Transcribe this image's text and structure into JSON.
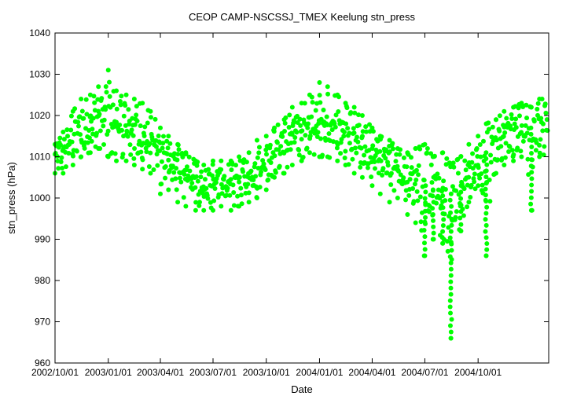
{
  "chart_data": {
    "type": "scatter",
    "title": "CEOP CAMP-NSCSSJ_TMEX Keelung  stn_press",
    "xlabel": "Date",
    "ylabel": "stn_press (hPa)",
    "ylim": [
      960,
      1040
    ],
    "yticks": [
      960,
      970,
      980,
      990,
      1000,
      1010,
      1020,
      1030,
      1040
    ],
    "xlim": [
      "2002/10/01",
      "2005/01/31"
    ],
    "xticks": [
      "2002/10/01",
      "2003/01/01",
      "2003/04/01",
      "2003/07/01",
      "2003/10/01",
      "2004/01/01",
      "2004/04/01",
      "2004/07/01",
      "2004/10/01"
    ],
    "grid": false,
    "color": "#00ff00",
    "series": [
      {
        "x": [
          "2002/10/01",
          "2002/10/15",
          "2002/11/01",
          "2002/11/15",
          "2002/12/01",
          "2002/12/15",
          "2003/01/01",
          "2003/01/15",
          "2003/02/01",
          "2003/02/15",
          "2003/03/01",
          "2003/03/15",
          "2003/04/01",
          "2003/04/15",
          "2003/05/01",
          "2003/05/15",
          "2003/06/01",
          "2003/06/15",
          "2003/07/01",
          "2003/07/15",
          "2003/08/01",
          "2003/08/15",
          "2003/09/01",
          "2003/09/15",
          "2003/10/01",
          "2003/10/15",
          "2003/11/01",
          "2003/11/15",
          "2003/12/01",
          "2003/12/15",
          "2004/01/01",
          "2004/01/15",
          "2004/02/01",
          "2004/02/15",
          "2004/03/01",
          "2004/03/15",
          "2004/04/01",
          "2004/04/15",
          "2004/05/01",
          "2004/05/15",
          "2004/06/01",
          "2004/06/15",
          "2004/07/01",
          "2004/07/15",
          "2004/08/01",
          "2004/08/15",
          "2004/09/01",
          "2004/09/15",
          "2004/10/01",
          "2004/10/15",
          "2004/11/01",
          "2004/11/15",
          "2004/12/01",
          "2004/12/15",
          "2005/01/01",
          "2005/01/15"
        ],
        "y": [
          1010,
          1011,
          1015,
          1016,
          1018,
          1019,
          1019,
          1018,
          1017,
          1016,
          1015,
          1014,
          1011,
          1009,
          1007,
          1006,
          1004,
          1003,
          1003,
          1004,
          1003,
          1004,
          1005,
          1007,
          1009,
          1011,
          1013,
          1015,
          1016,
          1017,
          1018,
          1018,
          1017,
          1016,
          1014,
          1013,
          1011,
          1009,
          1008,
          1007,
          1005,
          1004,
          1003,
          1002,
          1002,
          1001,
          1003,
          1005,
          1008,
          1011,
          1013,
          1015,
          1016,
          1017,
          1017,
          1018
        ],
        "high": [
          1013,
          1016,
          1021,
          1024,
          1025,
          1027,
          1031,
          1026,
          1025,
          1024,
          1023,
          1021,
          1017,
          1015,
          1013,
          1011,
          1009,
          1008,
          1009,
          1009,
          1009,
          1010,
          1011,
          1014,
          1015,
          1017,
          1019,
          1022,
          1023,
          1025,
          1028,
          1027,
          1025,
          1023,
          1022,
          1020,
          1017,
          1015,
          1014,
          1012,
          1011,
          1012,
          1013,
          1010,
          1011,
          1008,
          1010,
          1013,
          1015,
          1018,
          1019,
          1021,
          1022,
          1023,
          1022,
          1024
        ],
        "low": [
          1006,
          1006,
          1008,
          1010,
          1011,
          1012,
          1010,
          1009,
          1009,
          1008,
          1007,
          1006,
          1001,
          1002,
          999,
          998,
          997,
          997,
          997,
          998,
          997,
          998,
          999,
          1000,
          1002,
          1005,
          1006,
          1008,
          1009,
          1011,
          1010,
          1010,
          1009,
          1008,
          1006,
          1005,
          1003,
          1001,
          999,
          1000,
          996,
          994,
          986,
          990,
          989,
          966,
          992,
          999,
          1003,
          986,
          1006,
          1008,
          1009,
          1010,
          997,
          1010
        ]
      }
    ]
  }
}
